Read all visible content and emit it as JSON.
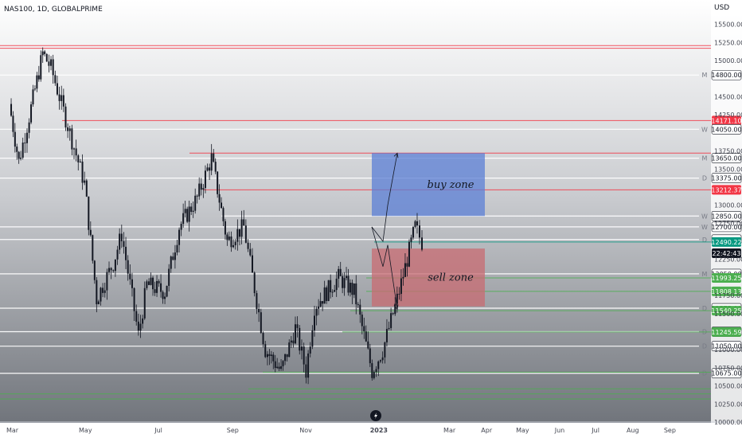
{
  "header": {
    "symbol": "NAS100, 1D, GLOBALPRIME",
    "currency": "USD"
  },
  "watermark_icon": "lightning-icon",
  "chart_data": {
    "type": "candlestick",
    "title": "NAS100, 1D, GLOBALPRIME",
    "ylabel": "USD",
    "ylim": [
      10000,
      15750
    ],
    "y_ticks": [
      "15500.00",
      "15250.00",
      "15000.00",
      "14500.00",
      "14250.00",
      "13750.00",
      "13500.00",
      "13000.00",
      "12750.00",
      "12250.00",
      "11750.00",
      "11500.00",
      "11000.00",
      "10750.00",
      "10500.00",
      "10250.00",
      "10000.00"
    ],
    "x_ticks": [
      "Mar",
      "May",
      "Jul",
      "Sep",
      "Nov",
      "2023",
      "Mar",
      "Apr",
      "May",
      "Jun",
      "Jul",
      "Aug",
      "Sep"
    ],
    "price_path": [
      [
        "2022-02-28",
        14400
      ],
      [
        "2022-03-08",
        13600
      ],
      [
        "2022-03-15",
        14100
      ],
      [
        "2022-03-28",
        15100
      ],
      [
        "2022-04-04",
        14900
      ],
      [
        "2022-04-18",
        14100
      ],
      [
        "2022-05-02",
        13300
      ],
      [
        "2022-05-12",
        11700
      ],
      [
        "2022-05-26",
        12200
      ],
      [
        "2022-06-02",
        12600
      ],
      [
        "2022-06-16",
        11200
      ],
      [
        "2022-06-23",
        11900
      ],
      [
        "2022-07-08",
        11800
      ],
      [
        "2022-07-20",
        12700
      ],
      [
        "2022-08-04",
        13100
      ],
      [
        "2022-08-16",
        13650
      ],
      [
        "2022-08-29",
        12500
      ],
      [
        "2022-09-12",
        12700
      ],
      [
        "2022-09-30",
        11000
      ],
      [
        "2022-10-13",
        10700
      ],
      [
        "2022-10-25",
        11300
      ],
      [
        "2022-11-03",
        10700
      ],
      [
        "2022-11-10",
        11600
      ],
      [
        "2022-11-30",
        12000
      ],
      [
        "2022-12-13",
        11800
      ],
      [
        "2022-12-28",
        10700
      ],
      [
        "2023-01-06",
        11000
      ],
      [
        "2023-01-18",
        11700
      ],
      [
        "2023-02-02",
        12700
      ],
      [
        "2023-02-08",
        12490
      ]
    ],
    "horizontal_levels": [
      {
        "value": 15208,
        "color": "#f23645",
        "tag": ""
      },
      {
        "value": 15170,
        "color": "#f23645",
        "tag": ""
      },
      {
        "value": 14800.0,
        "color": "#ffffff",
        "tag": "M",
        "label": "14800.00"
      },
      {
        "value": 14171.1,
        "color": "#f23645",
        "tag": "",
        "label": "14171.10"
      },
      {
        "value": 14050.0,
        "color": "#ffffff",
        "tag": "W",
        "label": "14050.00"
      },
      {
        "value": 13720,
        "color": "#f23645",
        "tag": ""
      },
      {
        "value": 13650.0,
        "color": "#ffffff",
        "tag": "M",
        "label": "13650.00"
      },
      {
        "value": 13375.0,
        "color": "#ffffff",
        "tag": "D",
        "label": "13375.00"
      },
      {
        "value": 13212.37,
        "color": "#f23645",
        "tag": "",
        "label": "13212.37"
      },
      {
        "value": 12850.0,
        "color": "#ffffff",
        "tag": "W",
        "label": "12850.00"
      },
      {
        "value": 12700.0,
        "color": "#ffffff",
        "tag": "W",
        "label": "12700.00"
      },
      {
        "value": 12525.0,
        "color": "#ffffff",
        "tag": "D",
        "label": "12525.00"
      },
      {
        "value": 12490.22,
        "color": "#089981",
        "tag": "",
        "label": "12490.22"
      },
      {
        "value": 12050.0,
        "color": "#ffffff",
        "tag": "M",
        "label": "12050.00"
      },
      {
        "value": 11993.25,
        "color": "#4caf50",
        "tag": "",
        "label": "11993.25"
      },
      {
        "value": 11808.13,
        "color": "#4caf50",
        "tag": "",
        "label": "11808.13"
      },
      {
        "value": 11575.0,
        "color": "#ffffff",
        "tag": "D",
        "label": "11575.00"
      },
      {
        "value": 11540.25,
        "color": "#4caf50",
        "tag": "",
        "label": "11540.25"
      },
      {
        "value": 11250.0,
        "color": "#ffffff",
        "tag": "D",
        "label": "11250.00"
      },
      {
        "value": 11245.59,
        "color": "#4caf50",
        "tag": "",
        "label": "11245.59"
      },
      {
        "value": 11050.0,
        "color": "#ffffff",
        "tag": "D",
        "label": "11050.00"
      },
      {
        "value": 10675.0,
        "color": "#ffffff",
        "tag": "D",
        "label": "10675.00"
      },
      {
        "value": 10690,
        "color": "#4caf50",
        "tag": ""
      },
      {
        "value": 10460,
        "color": "#4caf50",
        "tag": ""
      },
      {
        "value": 10390,
        "color": "#4caf50",
        "tag": ""
      },
      {
        "value": 10320,
        "color": "#4caf50",
        "tag": ""
      }
    ],
    "current_price": {
      "value": 12600,
      "label": "22:42:43"
    },
    "annotations": [
      {
        "text": "buy zone",
        "color": "#5b7fd6",
        "y_top": 13720,
        "y_bottom": 12850
      },
      {
        "text": "sell zone",
        "color": "#c86b72",
        "y_top": 12400,
        "y_bottom": 11600
      }
    ]
  }
}
